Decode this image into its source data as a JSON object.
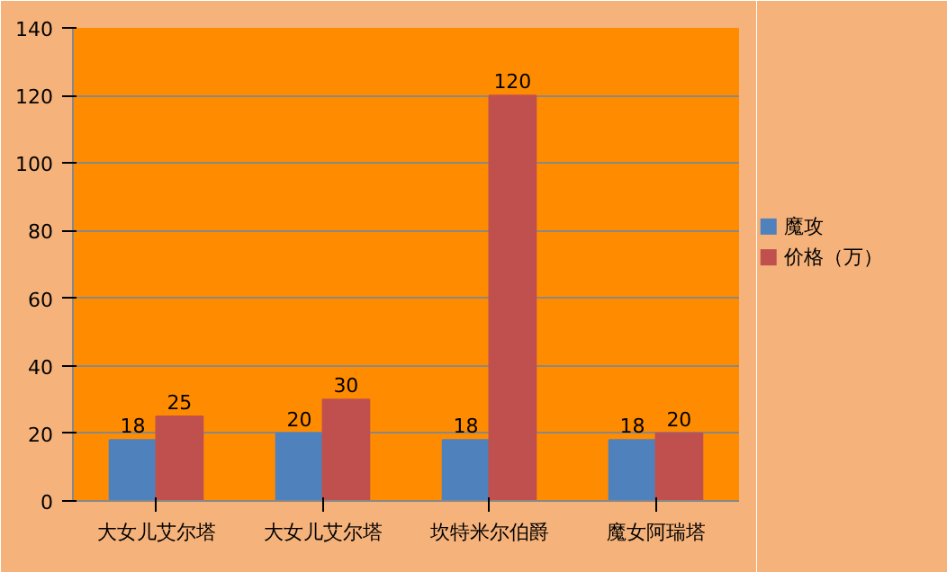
{
  "chart_data": {
    "type": "bar",
    "categories": [
      "大女儿艾尔塔",
      "大女儿艾尔塔",
      "坎特米尔伯爵",
      "魔女阿瑞塔"
    ],
    "series": [
      {
        "name": "魔攻",
        "color": "#4f81bd",
        "values": [
          18,
          20,
          18,
          18
        ]
      },
      {
        "name": "价格（万）",
        "color": "#c0504d",
        "values": [
          25,
          30,
          120,
          20
        ]
      }
    ],
    "ylim": [
      0,
      140
    ],
    "yticks": [
      0,
      20,
      40,
      60,
      80,
      100,
      120,
      140
    ],
    "grid": "y",
    "legend": "right",
    "data_labels": true
  }
}
